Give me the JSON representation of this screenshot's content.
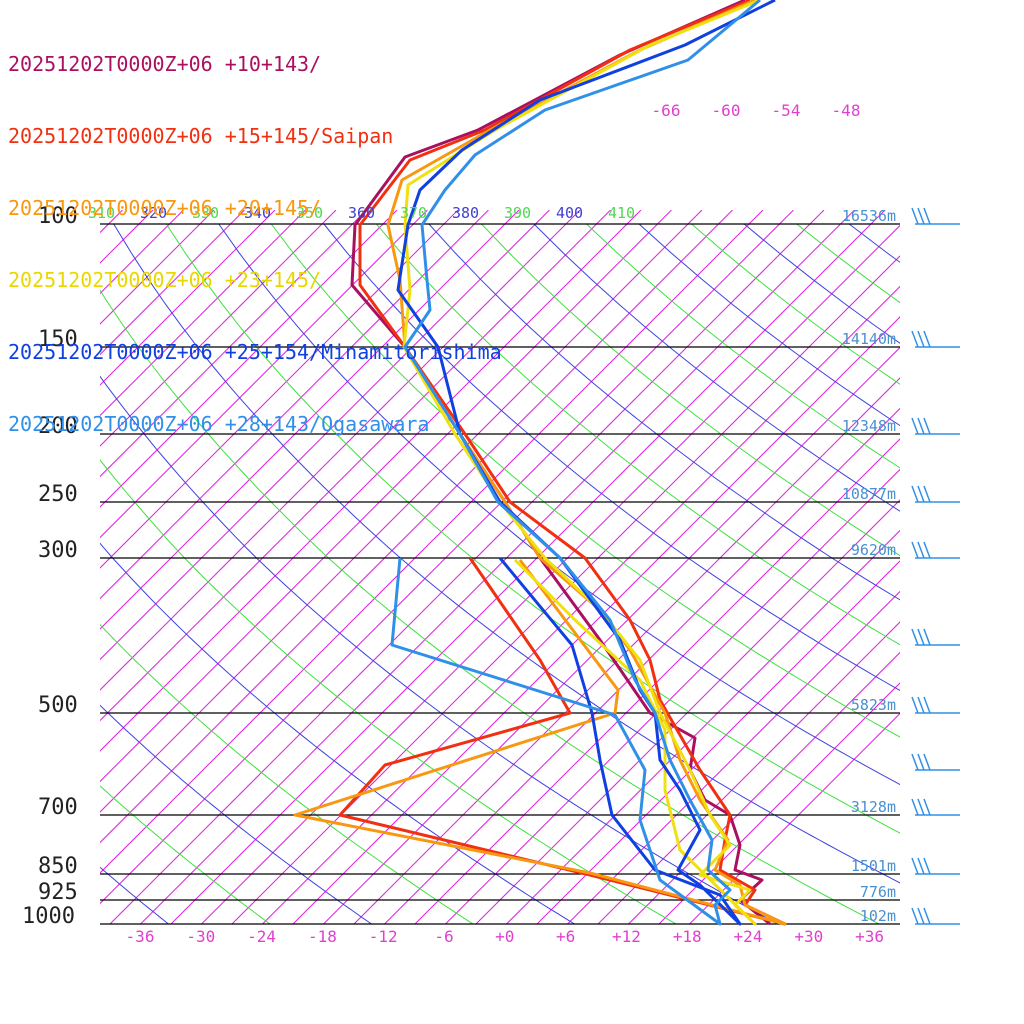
{
  "chart_data": {
    "type": "line",
    "title": "",
    "xlabel": "",
    "ylabel": "",
    "pressure_levels": [
      100,
      150,
      200,
      250,
      300,
      500,
      700,
      850,
      925,
      1000
    ],
    "pressure_labels": [
      "100",
      "150",
      "200",
      "250",
      "300",
      "500",
      "700",
      "850",
      "925",
      "1000"
    ],
    "height_labels": [
      {
        "p": 100,
        "text": "16536m"
      },
      {
        "p": 150,
        "text": "14140m"
      },
      {
        "p": 200,
        "text": "12348m"
      },
      {
        "p": 250,
        "text": "10877m"
      },
      {
        "p": 300,
        "text": "9620m"
      },
      {
        "p": 500,
        "text": "5823m"
      },
      {
        "p": 700,
        "text": "3128m"
      },
      {
        "p": 850,
        "text": "1501m"
      },
      {
        "p": 925,
        "text": "776m"
      },
      {
        "p": 1000,
        "text": "102m"
      }
    ],
    "temperature_ticks": [
      "-36",
      "-30",
      "-24",
      "-18",
      "-12",
      "-6",
      "+0",
      "+6",
      "+12",
      "+18",
      "+24",
      "+30",
      "+36"
    ],
    "upper_temperature_ticks": [
      "-66",
      "-60",
      "-54",
      "-48"
    ],
    "theta_labels": [
      "310",
      "320",
      "330",
      "340",
      "350",
      "360",
      "370",
      "380",
      "390",
      "400",
      "410"
    ],
    "colors": {
      "isotherm": "#e020e0",
      "theta_blue": "#4040e0",
      "theta_green": "#40e040",
      "isobar": "#000000"
    },
    "series": [
      {
        "name": "20251202T0000Z+06 +10+143/",
        "color": "#aa1060"
      },
      {
        "name": "20251202T0000Z+06 +15+145/Saipan",
        "color": "#f03010"
      },
      {
        "name": "20251202T0000Z+06 +20+145/",
        "color": "#f89810"
      },
      {
        "name": "20251202T0000Z+06 +23+145/",
        "color": "#f0e010"
      },
      {
        "name": "20251202T0000Z+06 +25+154/Minamitorishima",
        "color": "#1040e0"
      },
      {
        "name": "20251202T0000Z+06 +28+143/Ogasawara",
        "color": "#3090e8"
      }
    ]
  }
}
